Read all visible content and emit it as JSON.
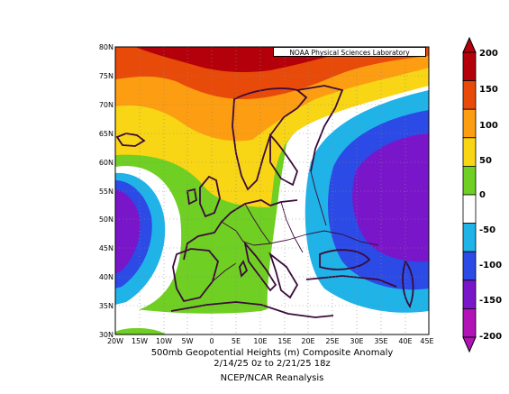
{
  "credit": "NOAA Physical Sciences Laboratory",
  "caption": {
    "line1": "500mb Geopotential Heights (m)    Composite Anomaly",
    "line2": "2/14/25 0z  to 2/21/25 18z",
    "line3": "NCEP/NCAR Reanalysis"
  },
  "lat_labels": [
    "80N",
    "75N",
    "70N",
    "65N",
    "60N",
    "55N",
    "50N",
    "45N",
    "40N",
    "35N",
    "30N"
  ],
  "lon_labels": [
    "20W",
    "15W",
    "10W",
    "5W",
    "0",
    "5E",
    "10E",
    "15E",
    "20E",
    "25E",
    "30E",
    "35E",
    "40E",
    "45E"
  ],
  "colorbar": {
    "labels": [
      "200",
      "150",
      "100",
      "50",
      "0",
      "-50",
      "-100",
      "-150",
      "-200"
    ],
    "colors": [
      "#b4000a",
      "#e84a09",
      "#fd9d12",
      "#f8d616",
      "#6fcf22",
      "#ffffff",
      "#1fb3e8",
      "#2b4ae6",
      "#7a16c9",
      "#b113b6"
    ]
  },
  "map": {
    "extent": {
      "lon": [
        -20,
        45
      ],
      "lat": [
        30,
        80
      ]
    },
    "field": "500mb geopotential height anomaly",
    "features": {
      "positive_max": "over Norwegian Sea / Arctic north of 75N (>200 m)",
      "negative_west": "west of Iberia near 50N (-150 m)",
      "negative_east": "western Russia near 50N 40E (-150 m)"
    }
  }
}
